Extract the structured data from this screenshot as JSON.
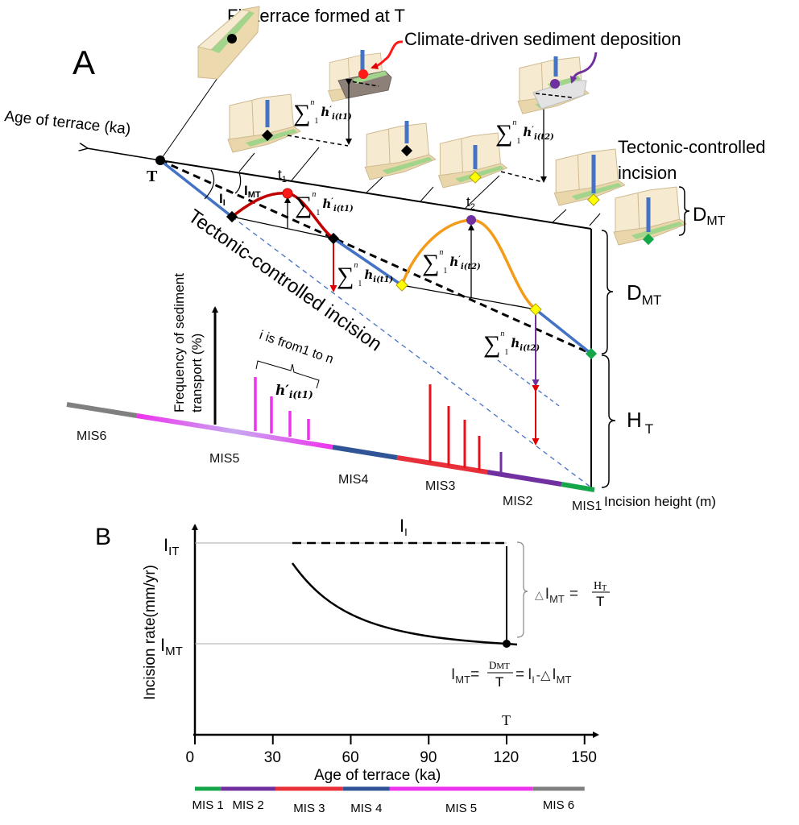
{
  "panel_a": {
    "label": "A",
    "fill_terrace_title": "Fill terrace formed at T",
    "climate_title": "Climate-driven sediment deposition",
    "age_axis_label": "Age of terrace (ka)",
    "terrace_age_label": "T",
    "t1": {
      "base": "t",
      "sub": "1"
    },
    "t2": {
      "base": "t",
      "sub": "2"
    },
    "i_mt": {
      "base": "I",
      "sub": "MT"
    },
    "i_i": {
      "base": "I",
      "sub": "I"
    },
    "tectonic_diag_label": "Tectonic-controlled incision",
    "tectonic_top_label": [
      "Tectonic-controlled",
      "incision"
    ],
    "d_mt": {
      "base": "D",
      "sub": "MT"
    },
    "h_t": {
      "base": "H",
      "sub": "T"
    },
    "frequency_axis_label": [
      "Frequency of sediment",
      "transport (%)"
    ],
    "i_range_label": "i is from1 to n",
    "h_prime_t1": {
      "base": "h",
      "prime": "′",
      "sub": "i(t1)"
    },
    "sum": {
      "symbol": "∑",
      "upper": "n",
      "lower": "1"
    },
    "sums": [
      {
        "base": "h",
        "prime": "′",
        "sub": "i(t1)"
      },
      {
        "base": "h",
        "prime": "′",
        "sub": "i(t1)"
      },
      {
        "base": "h",
        "prime": "",
        "sub": "i(t1)"
      },
      {
        "base": "h",
        "prime": "′",
        "sub": "i(t2)"
      },
      {
        "base": "h",
        "prime": "",
        "sub": "i(t2)"
      },
      {
        "base": "h",
        "prime": "′",
        "sub": "i(t2)"
      }
    ],
    "incision_height_label": "Incision height (m)",
    "mis_labels": [
      "MIS6",
      "MIS5",
      "MIS4",
      "MIS3",
      "MIS2",
      "MIS1"
    ],
    "colors": {
      "tectonic_line": "#4472c4",
      "climate_t1": "#c00000",
      "climate_t2": "#f59b1a",
      "mis1": "#16a64a",
      "mis2": "#7030a0",
      "mis3": "#e8303a",
      "mis4": "#2f5597",
      "mis5": "#ee33ee",
      "mis6": "#808080"
    }
  },
  "panel_b": {
    "label": "B",
    "y_axis_label": "Incision rate(mm/yr)",
    "x_axis_label": "Age of terrace (ka)",
    "x_ticks": [
      "0",
      "30",
      "60",
      "90",
      "120",
      "150"
    ],
    "i_it": {
      "base": "I",
      "sub": "IT"
    },
    "i_mt": {
      "base": "I",
      "sub": "MT"
    },
    "i_i": {
      "base": "I",
      "sub": "I"
    },
    "terrace_age_label": "T",
    "delta_formula": {
      "delta": "△",
      "base": "I",
      "sub": "MT",
      "eq": "=",
      "num_base": "H",
      "num_sub": "T",
      "den": "T"
    },
    "imt_formula": {
      "base": "I",
      "sub": "MT",
      "eq": "=",
      "num": "D",
      "num_sub": "MT",
      "den": "T",
      "eq2": "=",
      "ii_base": "I",
      "ii_sub": "I",
      "minus": "-△",
      "last_base": "I",
      "last_sub": "MT"
    },
    "mis_timeline": [
      {
        "label": "MIS 1",
        "from_ka": 0,
        "to_ka": 10,
        "color": "#16a64a"
      },
      {
        "label": "MIS 2",
        "from_ka": 10,
        "to_ka": 31,
        "color": "#7030a0"
      },
      {
        "label": "MIS 3",
        "from_ka": 31,
        "to_ka": 57,
        "color": "#e8303a"
      },
      {
        "label": "MIS 4",
        "from_ka": 57,
        "to_ka": 75,
        "color": "#2f5597"
      },
      {
        "label": "MIS 5",
        "from_ka": 75,
        "to_ka": 130,
        "color": "#ee33ee"
      },
      {
        "label": "MIS 6",
        "from_ka": 130,
        "to_ka": 150,
        "color": "#808080"
      }
    ]
  }
}
